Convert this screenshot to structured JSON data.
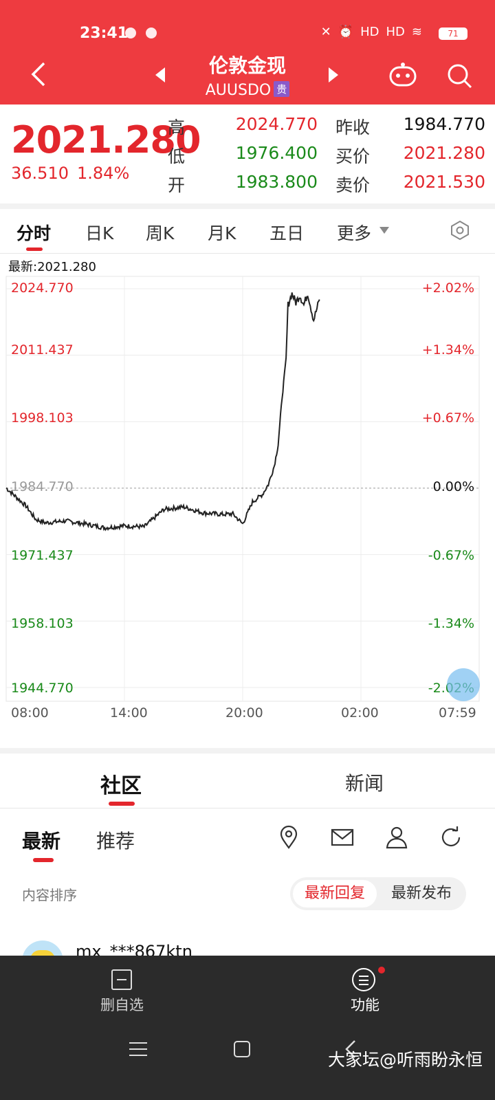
{
  "status": {
    "time": "23:41",
    "battery": "71",
    "signal_labels": [
      "HD",
      "HD"
    ]
  },
  "header": {
    "title": "伦敦金现",
    "symbol": "AUUSDO",
    "badge": "贵"
  },
  "quote": {
    "price": "2021.280",
    "change": "36.510",
    "change_pct": "1.84%",
    "rows": [
      {
        "l1": "高",
        "v1": "2024.770",
        "c1": "red",
        "l2": "昨收",
        "v2": "1984.770",
        "c2": "dark"
      },
      {
        "l1": "低",
        "v1": "1976.400",
        "c1": "green",
        "l2": "买价",
        "v2": "2021.280",
        "c2": "red"
      },
      {
        "l1": "开",
        "v1": "1983.800",
        "c1": "green",
        "l2": "卖价",
        "v2": "2021.530",
        "c2": "red"
      }
    ]
  },
  "tabs": {
    "fenshi": "分时",
    "rik": "日K",
    "zhouk": "周K",
    "yuek": "月K",
    "wuri": "五日",
    "more": "更多"
  },
  "chart_data": {
    "type": "line",
    "latest_label": "最新:2021.280",
    "y_ticks": [
      "2024.770",
      "2011.437",
      "1998.103",
      "1984.770",
      "1971.437",
      "1958.103",
      "1944.770"
    ],
    "y_tick_values": [
      2024.77,
      2011.437,
      1998.103,
      1984.77,
      1971.437,
      1958.103,
      1944.77
    ],
    "pct_ticks": [
      "+2.02%",
      "+1.34%",
      "+0.67%",
      "0.00%",
      "-0.67%",
      "-1.34%",
      "-2.02%"
    ],
    "x_ticks": [
      "08:00",
      "14:00",
      "20:00",
      "02:00",
      "07:59"
    ],
    "ylim": [
      1944.77,
      2024.77
    ],
    "x_hours": [
      0,
      0.5,
      1,
      1.5,
      2,
      3,
      4,
      5,
      6,
      7,
      8,
      9,
      10,
      11,
      11.5,
      12,
      12.5,
      13,
      13.3,
      13.6,
      13.8,
      14.0,
      14.2,
      14.3,
      14.5,
      14.7,
      14.9,
      15.1,
      15.3,
      15.6,
      15.9
    ],
    "values": [
      1984.8,
      1983.0,
      1981.2,
      1978.5,
      1977.8,
      1978.2,
      1977.6,
      1976.8,
      1977.2,
      1977.0,
      1980.5,
      1981.0,
      1979.8,
      1979.5,
      1979.6,
      1977.6,
      1982.0,
      1983.5,
      1985.5,
      1989.2,
      1993.5,
      2003.0,
      2010.5,
      2021.5,
      2023.8,
      2022.0,
      2023.5,
      2021.5,
      2023.9,
      2018.5,
      2022.6
    ],
    "prev_close": 1984.77
  },
  "community": {
    "tab_community": "社区",
    "tab_news": "新闻",
    "sub_latest": "最新",
    "sub_recommend": "推荐",
    "sort_label": "内容排序",
    "sort_reply": "最新回复",
    "sort_post": "最新发布",
    "first_user": "mx_***867ktn"
  },
  "bottom": {
    "delete_label": "删自选",
    "func_label": "功能",
    "watermark": "大家坛@听雨盼永恒"
  },
  "colors": {
    "brand_red": "#ee3b40",
    "up_red": "#e3262c",
    "down_green": "#1a8a1a"
  }
}
